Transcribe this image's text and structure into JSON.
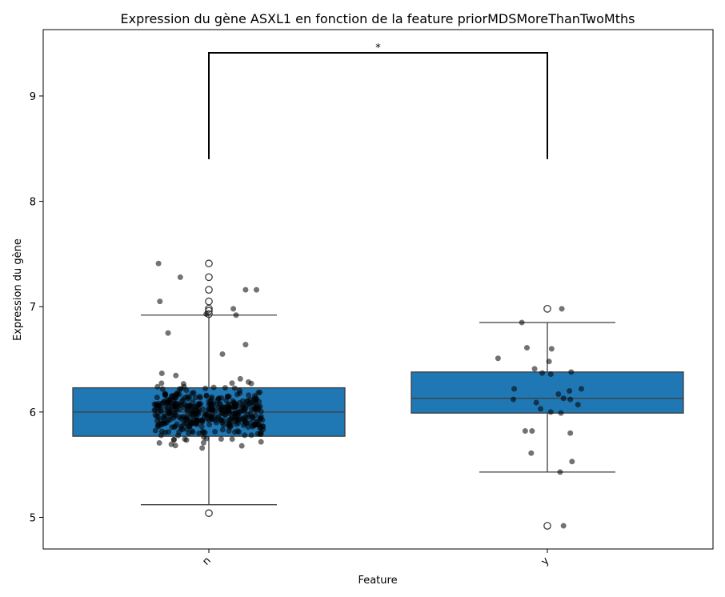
{
  "chart_data": {
    "type": "box",
    "title": "Expression du gène ASXL1 en fonction de la feature priorMDSMoreThanTwoMths",
    "xlabel": "Feature",
    "ylabel": "Expression du gène",
    "categories": [
      "n",
      "y"
    ],
    "ylim": [
      4.7,
      9.63
    ],
    "yticks": [
      5,
      6,
      7,
      8,
      9
    ],
    "box_color": "#1f77b4",
    "point_color": "#000000",
    "boxes": [
      {
        "category": "n",
        "q1": 5.77,
        "median": 6.0,
        "q3": 6.23,
        "whisker_low": 5.12,
        "whisker_high": 6.92,
        "outliers": [
          5.04,
          6.93,
          6.96,
          6.98,
          7.05,
          7.16,
          7.28,
          7.41
        ]
      },
      {
        "category": "y",
        "q1": 5.99,
        "median": 6.13,
        "q3": 6.38,
        "whisker_low": 5.43,
        "whisker_high": 6.85,
        "outliers": [
          4.92,
          6.98
        ]
      }
    ],
    "significance": {
      "from": "n",
      "to": "y",
      "label": "*",
      "y": 9.41,
      "drop_to": 8.4
    },
    "points_y": [
      {
        "offset": -0.37,
        "value": 7.41
      },
      {
        "offset": -0.21,
        "value": 7.28
      },
      {
        "offset": 0.27,
        "value": 7.16
      },
      {
        "offset": 0.35,
        "value": 7.16
      },
      {
        "offset": -0.36,
        "value": 7.05
      },
      {
        "offset": 0.18,
        "value": 6.98
      },
      {
        "offset": -0.02,
        "value": 6.93
      },
      {
        "offset": 0.2,
        "value": 6.92
      },
      {
        "offset": -0.3,
        "value": 6.75
      },
      {
        "offset": 0.27,
        "value": 6.64
      },
      {
        "offset": 0.1,
        "value": 6.55
      }
    ],
    "y_points": [
      {
        "offset": 0.17,
        "value": 6.98
      },
      {
        "offset": -0.3,
        "value": 6.85
      },
      {
        "offset": -0.58,
        "value": 6.51
      },
      {
        "offset": -0.24,
        "value": 6.61
      },
      {
        "offset": 0.05,
        "value": 6.6
      },
      {
        "offset": 0.02,
        "value": 6.48
      },
      {
        "offset": -0.15,
        "value": 6.41
      },
      {
        "offset": -0.06,
        "value": 6.37
      },
      {
        "offset": 0.04,
        "value": 6.36
      },
      {
        "offset": 0.28,
        "value": 6.38
      },
      {
        "offset": -0.39,
        "value": 6.22
      },
      {
        "offset": 0.26,
        "value": 6.2
      },
      {
        "offset": 0.4,
        "value": 6.22
      },
      {
        "offset": 0.13,
        "value": 6.17
      },
      {
        "offset": 0.19,
        "value": 6.13
      },
      {
        "offset": -0.4,
        "value": 6.12
      },
      {
        "offset": 0.27,
        "value": 6.12
      },
      {
        "offset": -0.13,
        "value": 6.09
      },
      {
        "offset": 0.36,
        "value": 6.07
      },
      {
        "offset": -0.08,
        "value": 6.03
      },
      {
        "offset": 0.04,
        "value": 6.0
      },
      {
        "offset": 0.16,
        "value": 5.99
      },
      {
        "offset": -0.26,
        "value": 5.82
      },
      {
        "offset": -0.18,
        "value": 5.82
      },
      {
        "offset": 0.27,
        "value": 5.8
      },
      {
        "offset": -0.19,
        "value": 5.61
      },
      {
        "offset": 0.29,
        "value": 5.53
      },
      {
        "offset": 0.15,
        "value": 5.43
      },
      {
        "offset": 0.19,
        "value": 4.92
      }
    ]
  }
}
